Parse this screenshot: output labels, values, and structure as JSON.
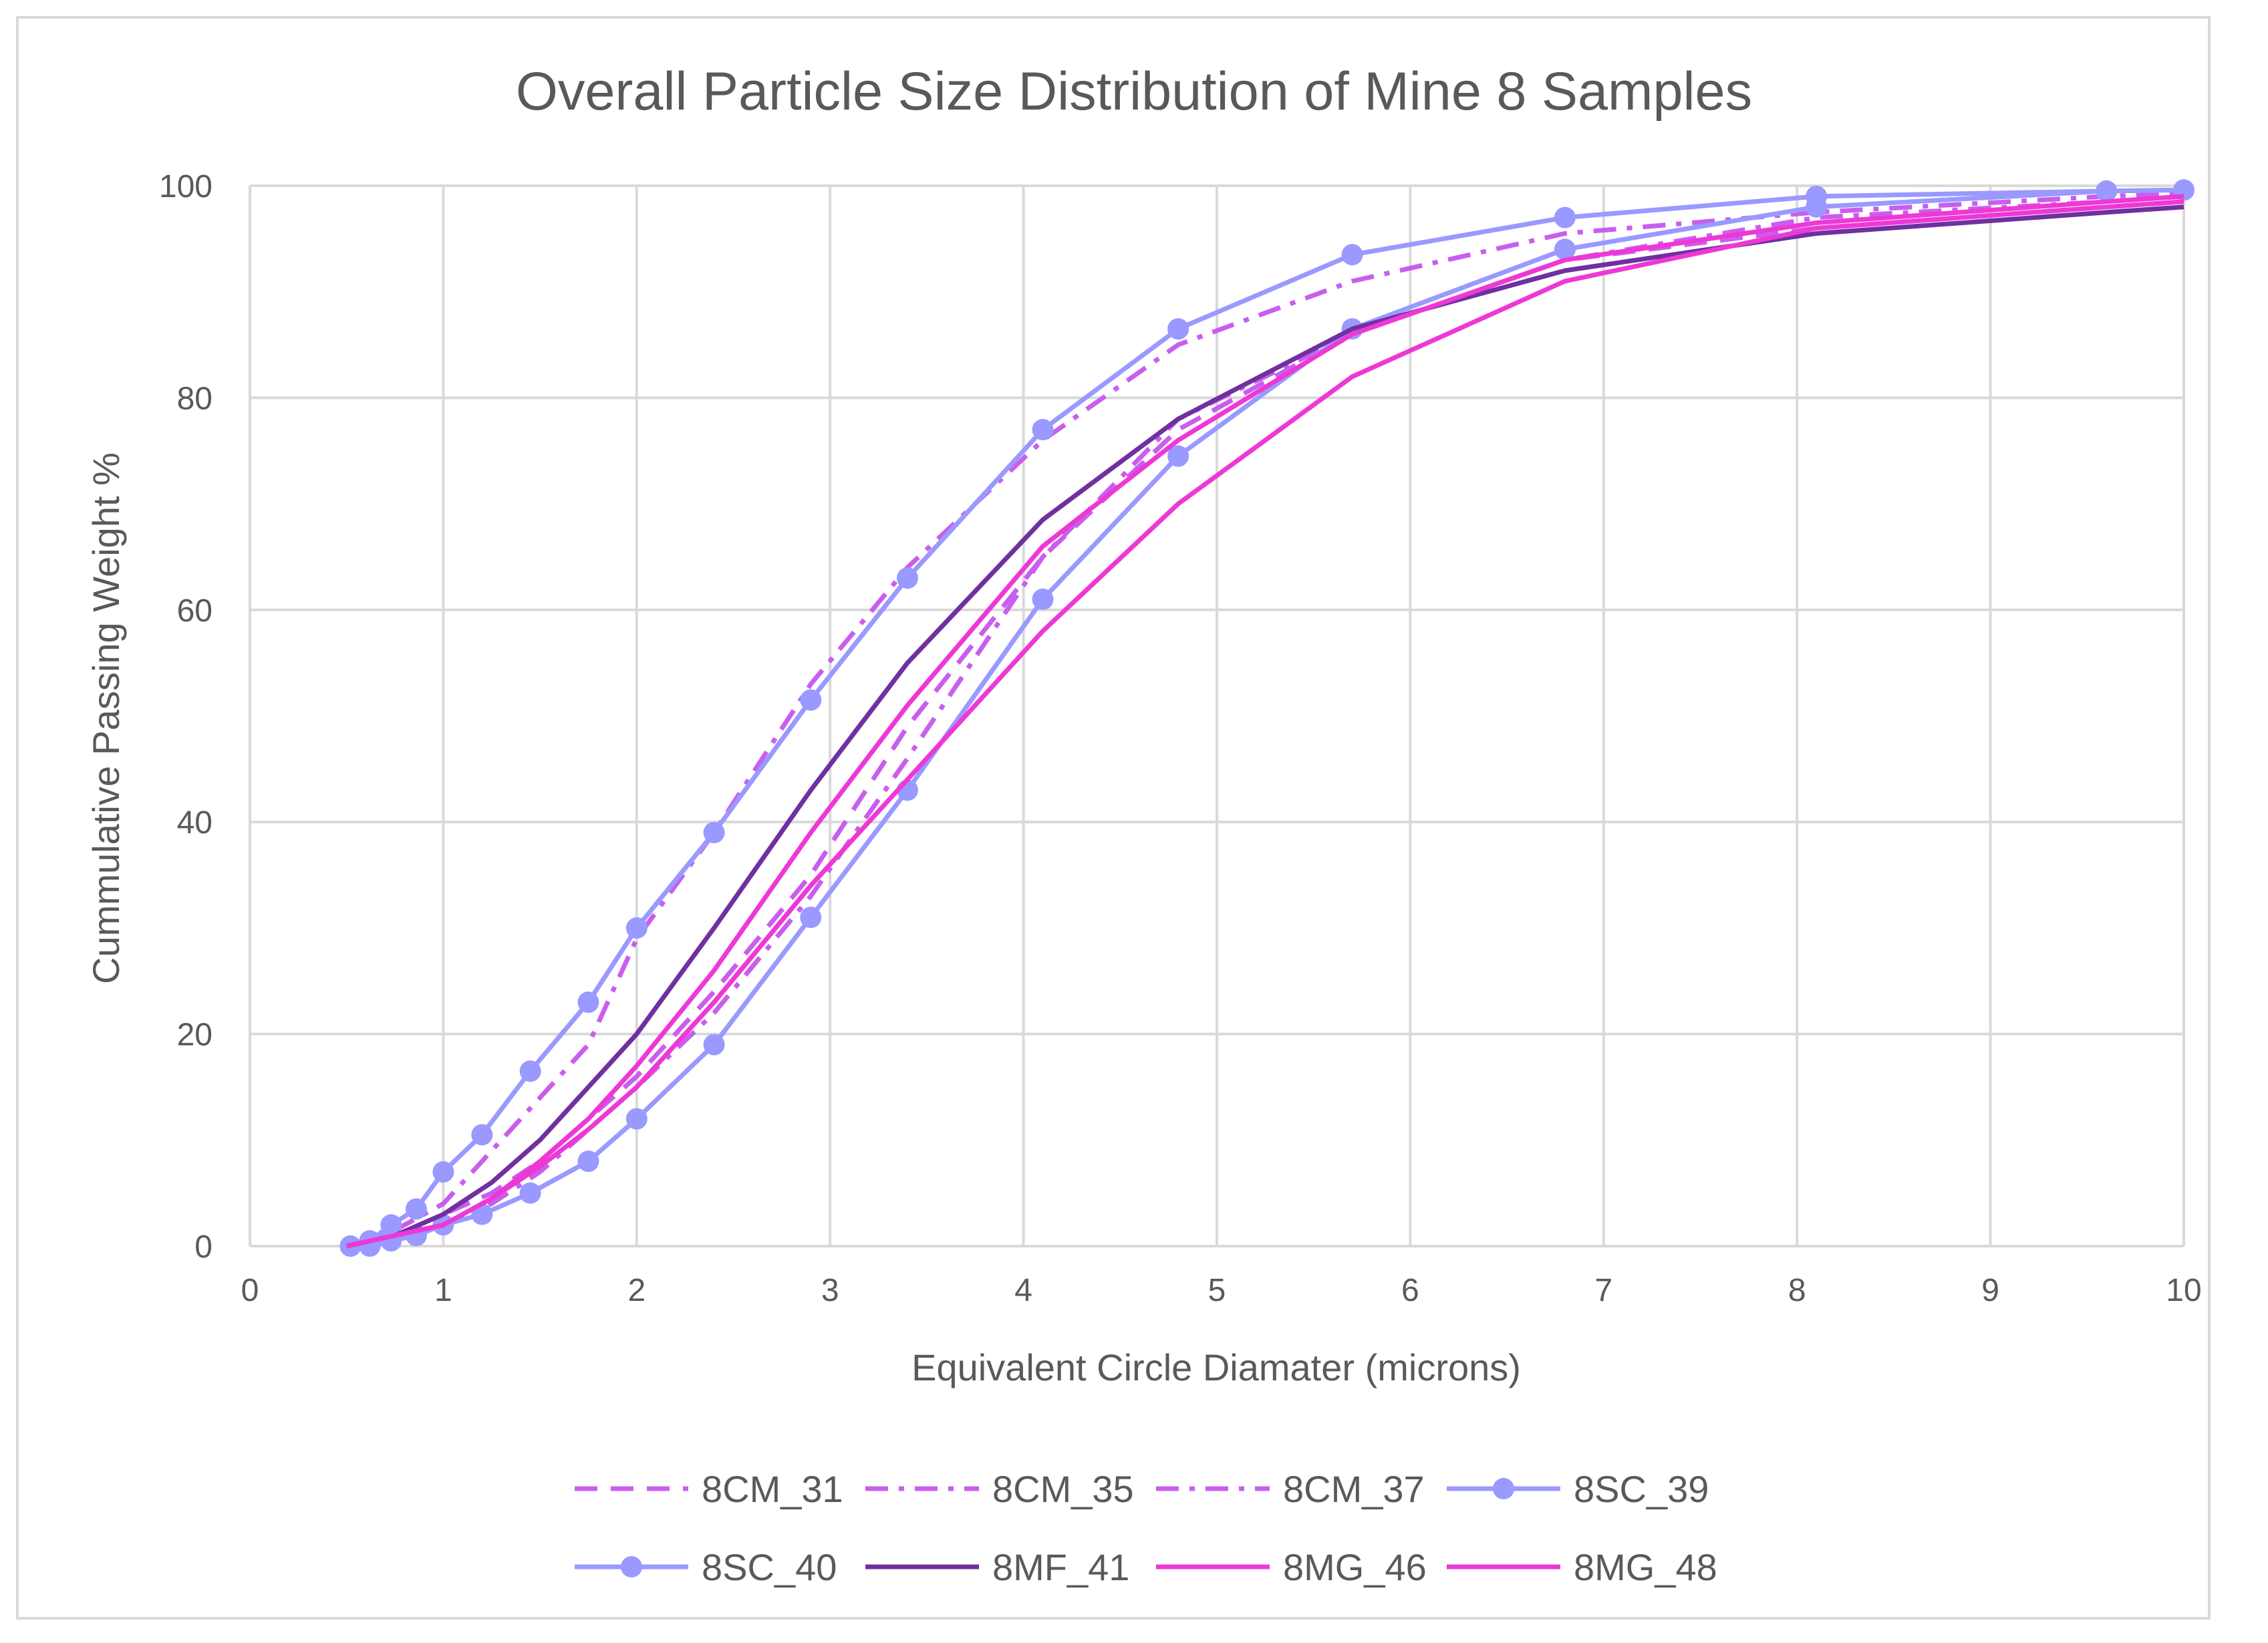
{
  "chart_data": {
    "type": "line",
    "title": "Overall Particle Size Distribution of Mine 8 Samples",
    "xlabel": "Equivalent Circle Diamater (microns)",
    "ylabel": "Cummulative Passing Weight %",
    "xlim": [
      0,
      10
    ],
    "ylim": [
      0,
      100
    ],
    "x_ticks": [
      "0",
      "1",
      "2",
      "3",
      "4",
      "5",
      "6",
      "7",
      "8",
      "9",
      "10"
    ],
    "y_ticks": [
      "0",
      "20",
      "40",
      "60",
      "80",
      "100"
    ],
    "grid": true,
    "legend_position": "bottom",
    "series": [
      {
        "name": "8CM_31",
        "color": "#c95eee",
        "style": "dash",
        "marker": "none",
        "x": [
          0.5,
          0.75,
          1.0,
          1.25,
          1.5,
          1.75,
          2.0,
          2.4,
          2.9,
          3.4,
          4.1,
          4.8,
          5.7,
          6.8,
          8.1,
          9.6,
          10
        ],
        "y": [
          0,
          1,
          3,
          5,
          8,
          12,
          16,
          24,
          35,
          49,
          65,
          77,
          86,
          93,
          96,
          98,
          98.5
        ]
      },
      {
        "name": "8CM_35",
        "color": "#c95eee",
        "style": "dashdot",
        "marker": "none",
        "x": [
          0.5,
          0.75,
          1.0,
          1.25,
          1.5,
          1.75,
          2.0,
          2.4,
          2.9,
          3.4,
          4.1,
          4.8,
          5.7,
          6.8,
          8.1,
          9.6,
          10
        ],
        "y": [
          0,
          1,
          2,
          4,
          7,
          11,
          15,
          22,
          33,
          46,
          65,
          78,
          86,
          93,
          97,
          98.5,
          99
        ]
      },
      {
        "name": "8CM_37",
        "color": "#c95eee",
        "style": "dashdot",
        "marker": "none",
        "x": [
          0.5,
          0.75,
          1.0,
          1.25,
          1.5,
          1.75,
          2.0,
          2.4,
          2.9,
          3.4,
          4.1,
          4.8,
          5.7,
          6.8,
          8.1,
          9.6,
          10
        ],
        "y": [
          0,
          1.5,
          4,
          9,
          14,
          19,
          29,
          39,
          53,
          64,
          76,
          85,
          91,
          95.5,
          97.5,
          99,
          99.3
        ]
      },
      {
        "name": "8SC_39",
        "color": "#9999ff",
        "style": "solid",
        "marker": "circle",
        "x": [
          0.52,
          0.62,
          0.73,
          0.86,
          1.0,
          1.2,
          1.45,
          1.75,
          2.0,
          2.4,
          2.9,
          3.4,
          4.1,
          4.8,
          5.7,
          6.8,
          8.1,
          9.6,
          10
        ],
        "y": [
          0,
          0,
          0.5,
          1,
          2,
          3,
          5,
          8,
          12,
          19,
          31,
          43,
          61,
          74.5,
          86.5,
          94,
          98,
          99.5,
          99.6
        ]
      },
      {
        "name": "8SC_40",
        "color": "#9999ff",
        "style": "solid",
        "marker": "circle",
        "x": [
          0.52,
          0.62,
          0.73,
          0.86,
          1.0,
          1.2,
          1.45,
          1.75,
          2.0,
          2.4,
          2.9,
          3.4,
          4.1,
          4.8,
          5.7,
          6.8,
          8.1,
          9.6,
          10
        ],
        "y": [
          0,
          0.5,
          2,
          3.5,
          7,
          10.5,
          16.5,
          23,
          30,
          39,
          51.5,
          63,
          77,
          86.5,
          93.5,
          97,
          99,
          99.5,
          99.6
        ]
      },
      {
        "name": "8MF_41",
        "color": "#7030a0",
        "style": "solid",
        "marker": "none",
        "x": [
          0.5,
          0.75,
          1.0,
          1.25,
          1.5,
          1.75,
          2.0,
          2.4,
          2.9,
          3.4,
          4.1,
          4.8,
          5.7,
          6.8,
          8.1,
          9.6,
          10
        ],
        "y": [
          0,
          1,
          3,
          6,
          10,
          15,
          20,
          30,
          43,
          55,
          68.5,
          78,
          86.5,
          92,
          95.5,
          97.5,
          98
        ]
      },
      {
        "name": "8MG_46",
        "color": "#ee38d6",
        "style": "solid",
        "marker": "none",
        "x": [
          0.5,
          0.75,
          1.0,
          1.25,
          1.5,
          1.75,
          2.0,
          2.4,
          2.9,
          3.4,
          4.1,
          4.8,
          5.7,
          6.8,
          8.1,
          9.6,
          10
        ],
        "y": [
          0,
          1,
          2,
          4.5,
          8,
          12,
          17,
          26,
          39,
          51,
          66,
          76,
          86,
          93,
          96.5,
          98.5,
          99
        ]
      },
      {
        "name": "8MG_48",
        "color": "#ee38d6",
        "style": "solid",
        "marker": "none",
        "x": [
          0.5,
          0.75,
          1.0,
          1.25,
          1.5,
          1.75,
          2.0,
          2.4,
          2.9,
          3.4,
          4.1,
          4.8,
          5.7,
          6.8,
          8.1,
          9.6,
          10
        ],
        "y": [
          0,
          1,
          2,
          4.5,
          7.5,
          11,
          15,
          23,
          34,
          44,
          58,
          70,
          82,
          91,
          96,
          98,
          98.5
        ]
      }
    ]
  }
}
